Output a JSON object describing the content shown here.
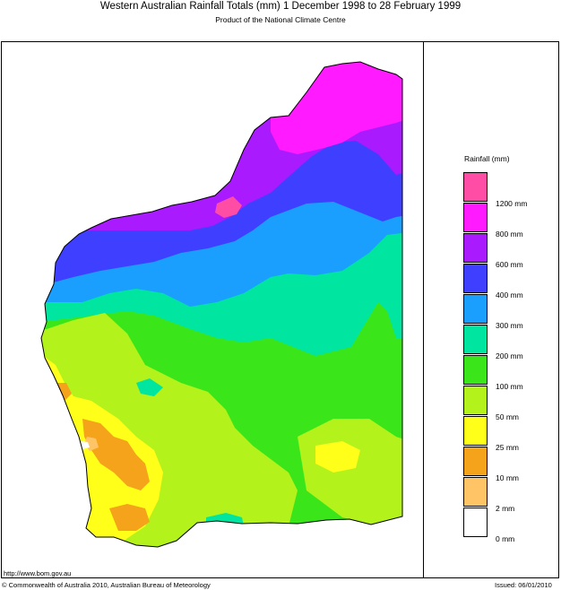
{
  "header": {
    "title": "Western Australian Rainfall Totals (mm) 1 December 1998 to 28 February 1999",
    "subtitle": "Product of the National Climate Centre"
  },
  "legend": {
    "title": "Rainfall (mm)",
    "swatches": [
      {
        "color": "#ff4da6"
      },
      {
        "color": "#ff1aff"
      },
      {
        "color": "#a91aff"
      },
      {
        "color": "#3f3fff"
      },
      {
        "color": "#1a9fff"
      },
      {
        "color": "#00e6a0"
      },
      {
        "color": "#3ae61a"
      },
      {
        "color": "#b3f21a"
      },
      {
        "color": "#ffff1a"
      },
      {
        "color": "#f5a31a"
      },
      {
        "color": "#ffc466"
      },
      {
        "color": "#ffffff"
      }
    ],
    "labels": [
      "1200 mm",
      "800 mm",
      "600 mm",
      "400 mm",
      "300 mm",
      "200 mm",
      "100 mm",
      "50 mm",
      "25 mm",
      "10 mm",
      "2 mm",
      "0 mm"
    ]
  },
  "footer": {
    "url": "http://www.bom.gov.au",
    "copyright": "© Commonwealth of Australia 2010, Australian Bureau of Meteorology",
    "issued": "Issued: 06/01/2010"
  }
}
